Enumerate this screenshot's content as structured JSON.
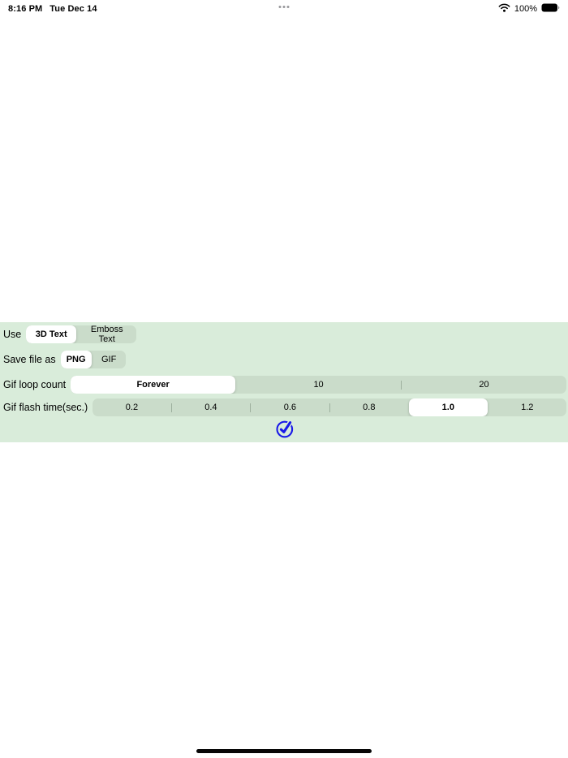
{
  "status_bar": {
    "time": "8:16 PM",
    "date": "Tue Dec 14",
    "battery_percent": "100%",
    "icons": {
      "wifi": "wifi-icon",
      "battery": "battery-full-icon",
      "multitask": "multitasking-dots-icon"
    }
  },
  "panel": {
    "background_color": "#d9ecda",
    "track_color": "#cadcca",
    "accent_blue": "#1a1ae8",
    "confirm_icon": "checkmark-circle-icon",
    "rows": [
      {
        "label": "Use",
        "segments": [
          {
            "label": "3D Text",
            "selected": true
          },
          {
            "label": "Emboss Text",
            "selected": false
          }
        ]
      },
      {
        "label": "Save file as",
        "segments": [
          {
            "label": "PNG",
            "selected": true
          },
          {
            "label": "GIF",
            "selected": false
          }
        ]
      },
      {
        "label": "Gif loop count",
        "segments": [
          {
            "label": "Forever",
            "selected": true
          },
          {
            "label": "10",
            "selected": false
          },
          {
            "label": "20",
            "selected": false
          }
        ]
      },
      {
        "label": "Gif flash time(sec.)",
        "segments": [
          {
            "label": "0.2",
            "selected": false
          },
          {
            "label": "0.4",
            "selected": false
          },
          {
            "label": "0.6",
            "selected": false
          },
          {
            "label": "0.8",
            "selected": false
          },
          {
            "label": "1.0",
            "selected": true
          },
          {
            "label": "1.2",
            "selected": false
          }
        ]
      }
    ]
  }
}
